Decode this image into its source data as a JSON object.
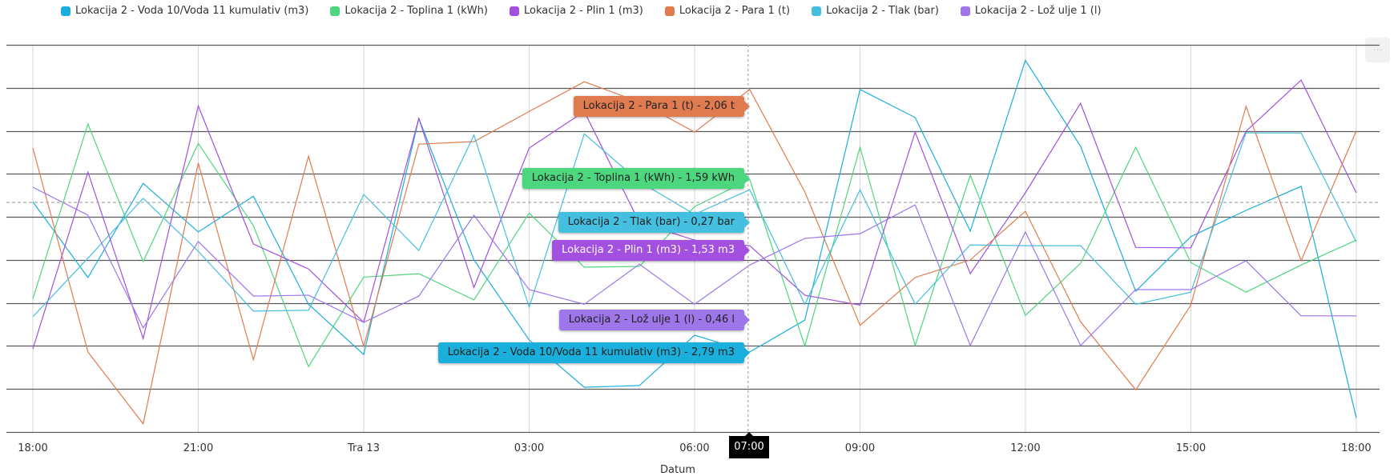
{
  "legend": [
    {
      "label": "Lokacija 2 - Voda 10/Voda 11 kumulativ (m3)",
      "color": "#1aafdc"
    },
    {
      "label": "Lokacija 2 - Toplina 1 (kWh)",
      "color": "#4cd67d"
    },
    {
      "label": "Lokacija 2 - Plin 1 (m3)",
      "color": "#a34fdf"
    },
    {
      "label": "Lokacija 2 - Para 1 (t)",
      "color": "#e07b4f"
    },
    {
      "label": "Lokacija 2 - Tlak (bar)",
      "color": "#45bfdf"
    },
    {
      "label": "Lokacija 2 - Lož ulje 1 (l)",
      "color": "#9e76ea"
    }
  ],
  "menu": {
    "icon": "ellipsis-icon",
    "label": "..."
  },
  "x_axis": {
    "title": "Datum",
    "ticks": [
      "18:00",
      "21:00",
      "Tra 13",
      "03:00",
      "06:00",
      "09:00",
      "12:00",
      "15:00",
      "18:00"
    ],
    "crosshair_label": "07:00"
  },
  "tooltips": [
    {
      "text": "Lokacija 2 - Para 1 (t) - 2,06 t",
      "color": "#e07b4f",
      "text_color": "#222"
    },
    {
      "text": "Lokacija 2 - Toplina 1 (kWh) - 1,59 kWh",
      "color": "#4cd67d",
      "text_color": "#222"
    },
    {
      "text": "Lokacija 2 - Tlak (bar) - 0,27 bar",
      "color": "#45bfdf",
      "text_color": "#222"
    },
    {
      "text": "Lokacija 2 - Plin 1 (m3) - 1,53 m3",
      "color": "#a34fdf",
      "text_color": "#ffffff"
    },
    {
      "text": "Lokacija 2 - Lož ulje 1 (l) - 0,46 l",
      "color": "#9e76ea",
      "text_color": "#222"
    },
    {
      "text": "Lokacija 2 - Voda 10/Voda 11 kumulativ (m3) - 2,79 m3",
      "color": "#1aafdc",
      "text_color": "#222"
    }
  ],
  "chart_data": {
    "type": "line",
    "title": "",
    "xlabel": "Datum",
    "ylabel": "",
    "y_axis_note": "No y tick labels visible; values below are relative positions on a 0-9 gridline scale (9 gridline bands).",
    "ylim": [
      0,
      9
    ],
    "grid": true,
    "legend_position": "top",
    "x": [
      "18:00",
      "19:00",
      "20:00",
      "21:00",
      "22:00",
      "23:00",
      "Tra 13",
      "01:00",
      "02:00",
      "03:00",
      "04:00",
      "05:00",
      "06:00",
      "07:00",
      "08:00",
      "09:00",
      "10:00",
      "11:00",
      "12:00",
      "13:00",
      "14:00",
      "15:00",
      "16:00",
      "17:00",
      "18:00"
    ],
    "crosshair": {
      "x": "07:00",
      "values": {
        "Para 1 (t)": 2.06,
        "Toplina 1 (kWh)": 1.59,
        "Tlak (bar)": 0.27,
        "Plin 1 (m3)": 1.53,
        "Lož ulje 1 (l)": 0.46,
        "Voda 10/Voda 11 kumulativ (m3)": 2.79
      }
    },
    "series": [
      {
        "name": "Lokacija 2 - Voda 10/Voda 11 kumulativ (m3)",
        "color": "#1aafdc",
        "values": [
          5.35,
          3.59,
          5.78,
          4.65,
          5.48,
          2.97,
          1.8,
          7.29,
          4.0,
          2.14,
          1.04,
          1.08,
          2.25,
          1.86,
          2.6,
          7.96,
          7.31,
          4.67,
          8.64,
          6.64,
          3.27,
          4.54,
          5.15,
          5.71,
          0.33
        ]
      },
      {
        "name": "Lokacija 2 - Toplina 1 (kWh)",
        "color": "#4cd67d",
        "values": [
          3.1,
          7.16,
          3.96,
          6.71,
          4.8,
          1.52,
          3.6,
          3.68,
          3.07,
          5.09,
          3.83,
          3.85,
          5.24,
          5.87,
          2.0,
          6.62,
          2.01,
          5.97,
          2.71,
          3.92,
          6.62,
          3.94,
          3.25,
          3.88,
          4.46
        ]
      },
      {
        "name": "Lokacija 2 - Plin 1 (m3)",
        "color": "#a34fdf",
        "values": [
          1.93,
          6.04,
          2.17,
          7.58,
          4.37,
          3.79,
          2.55,
          7.29,
          3.36,
          6.6,
          7.45,
          4.87,
          4.46,
          4.33,
          3.18,
          2.95,
          6.97,
          3.68,
          5.56,
          7.64,
          4.29,
          4.28,
          6.99,
          8.18,
          5.56
        ]
      },
      {
        "name": "Lokacija 2 - Para 1 (t)",
        "color": "#e07b4f",
        "values": [
          6.6,
          1.86,
          0.19,
          6.25,
          1.68,
          6.41,
          1.99,
          6.69,
          6.75,
          7.45,
          8.14,
          7.67,
          6.97,
          7.96,
          5.58,
          2.48,
          3.59,
          4.0,
          5.13,
          2.56,
          0.98,
          2.95,
          7.57,
          3.98,
          7.0
        ]
      },
      {
        "name": "Lokacija 2 - Tlak (bar)",
        "color": "#45bfdf",
        "values": [
          2.68,
          4.04,
          5.43,
          4.2,
          2.81,
          2.83,
          5.52,
          4.22,
          6.9,
          2.9,
          6.93,
          5.82,
          5.06,
          5.63,
          2.97,
          5.63,
          2.97,
          4.35,
          4.33,
          4.33,
          2.97,
          3.25,
          6.95,
          6.95,
          4.42
        ]
      },
      {
        "name": "Lokacija 2 - Lož ulje 1 (l)",
        "color": "#9e76ea",
        "values": [
          5.69,
          5.04,
          2.42,
          4.43,
          3.16,
          3.18,
          2.55,
          3.16,
          5.04,
          3.31,
          2.97,
          3.9,
          2.97,
          3.88,
          4.5,
          4.61,
          5.28,
          2.01,
          4.65,
          2.01,
          3.31,
          3.31,
          3.98,
          2.7,
          2.7
        ]
      }
    ]
  }
}
